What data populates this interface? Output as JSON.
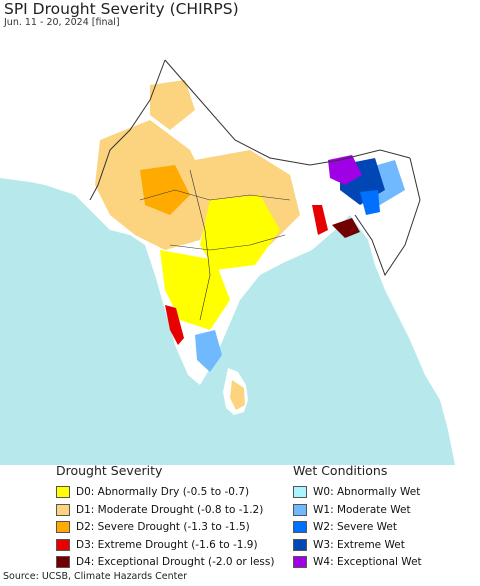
{
  "title": "SPI Drought Severity (CHIRPS)",
  "subtitle": "Jun. 11 - 20, 2024 [final]",
  "map": {
    "colors": {
      "land": "#ffffff",
      "sea": "#b7e9ec",
      "border": "#333333",
      "d0": "#ffff00",
      "d1": "#fcd37f",
      "d2": "#ffaa00",
      "d3": "#e60000",
      "d4": "#730000",
      "w0": "#aaf3ff",
      "w1": "#70b9ff",
      "w2": "#0070ff",
      "w3": "#0046b4",
      "w4": "#a000e6"
    }
  },
  "drought_legend": {
    "title": "Drought Severity",
    "items": [
      {
        "label": "D0: Abnormally Dry (-0.5 to -0.7)",
        "color": "#ffff00"
      },
      {
        "label": "D1: Moderate Drought (-0.8 to -1.2)",
        "color": "#fcd37f"
      },
      {
        "label": "D2: Severe Drought (-1.3 to -1.5)",
        "color": "#ffaa00"
      },
      {
        "label": "D3: Extreme Drought (-1.6 to -1.9)",
        "color": "#e60000"
      },
      {
        "label": "D4: Exceptional Drought (-2.0 or less)",
        "color": "#730000"
      }
    ]
  },
  "wet_legend": {
    "title": "Wet Conditions",
    "items": [
      {
        "label": "W0: Abnormally Wet",
        "color": "#aaf3ff"
      },
      {
        "label": "W1: Moderate Wet",
        "color": "#70b9ff"
      },
      {
        "label": "W2: Severe Wet",
        "color": "#0070ff"
      },
      {
        "label": "W3: Extreme Wet",
        "color": "#0046b4"
      },
      {
        "label": "W4: Exceptional Wet",
        "color": "#a000e6"
      }
    ]
  },
  "source": "Source: UCSB, Climate Hazards Center"
}
